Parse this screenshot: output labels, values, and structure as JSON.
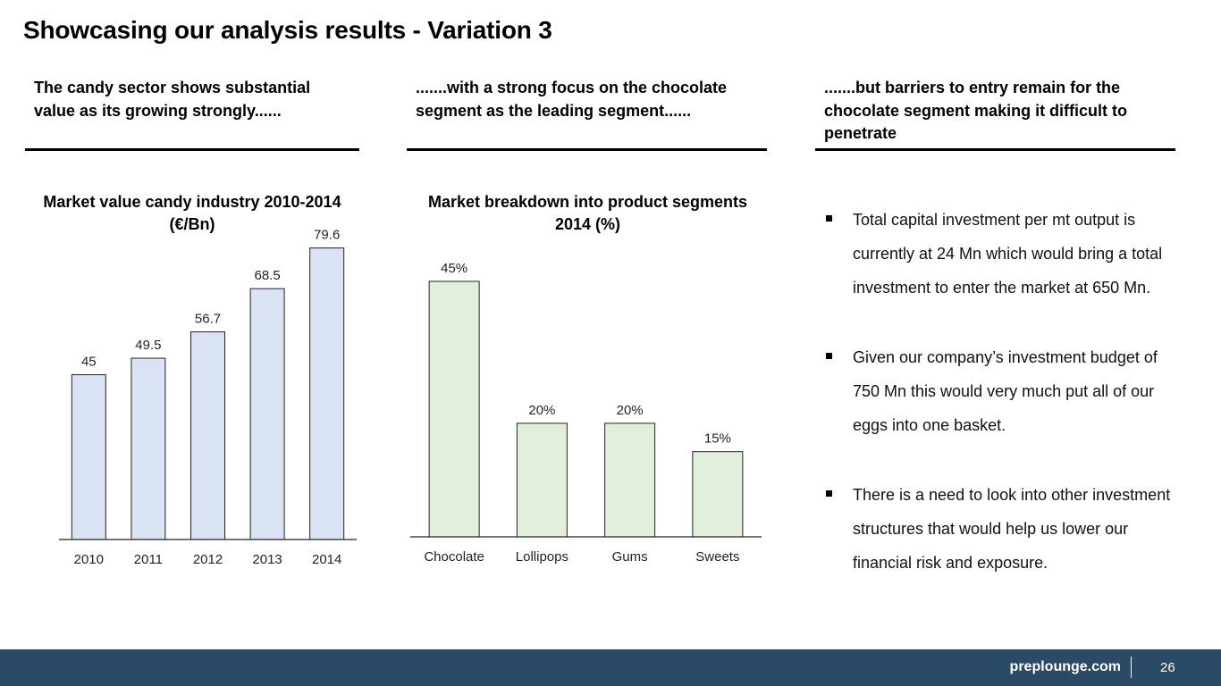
{
  "title": "Showcasing our analysis results - Variation 3",
  "columns": [
    {
      "heading": ".......with a strong focus on the chocolate segment as the leading segment......"
    }
  ],
  "column_headings": {
    "left": "The candy sector shows substantial value as its growing strongly......",
    "middle": ".......with a strong focus on the chocolate segment as the leading segment......",
    "right": ".......but barriers to entry remain for the chocolate segment making it difficult to penetrate"
  },
  "bullets": [
    "Total capital investment per mt output is currently at 24 Mn which would bring a total investment to enter the market at 650 Mn.",
    "Given our company’s investment budget of 750 Mn this would very much put all of our eggs into one basket.",
    "There is a need to look into other investment structures that would help us lower our financial risk and exposure."
  ],
  "footer": {
    "brand": "preplounge.com",
    "page": "26"
  },
  "colors": {
    "bar1": "#dae3f3",
    "bar2": "#e2efda",
    "footer": "#2a4a66"
  },
  "chart_data": [
    {
      "type": "bar",
      "title": "Market value candy industry 2010-2014 (€/Bn)",
      "categories": [
        "2010",
        "2011",
        "2012",
        "2013",
        "2014"
      ],
      "values": [
        45,
        49.5,
        56.7,
        68.5,
        79.6
      ],
      "labels": [
        "45",
        "49.5",
        "56.7",
        "68.5",
        "79.6"
      ],
      "ylim": [
        0,
        80
      ],
      "grid": false
    },
    {
      "type": "bar",
      "title": "Market breakdown into product segments 2014 (%)",
      "categories": [
        "Chocolate",
        "Lollipops",
        "Gums",
        "Sweets"
      ],
      "values": [
        45,
        20,
        20,
        15
      ],
      "labels": [
        "45%",
        "20%",
        "20%",
        "15%"
      ],
      "ylim": [
        0,
        45
      ],
      "grid": false
    }
  ]
}
